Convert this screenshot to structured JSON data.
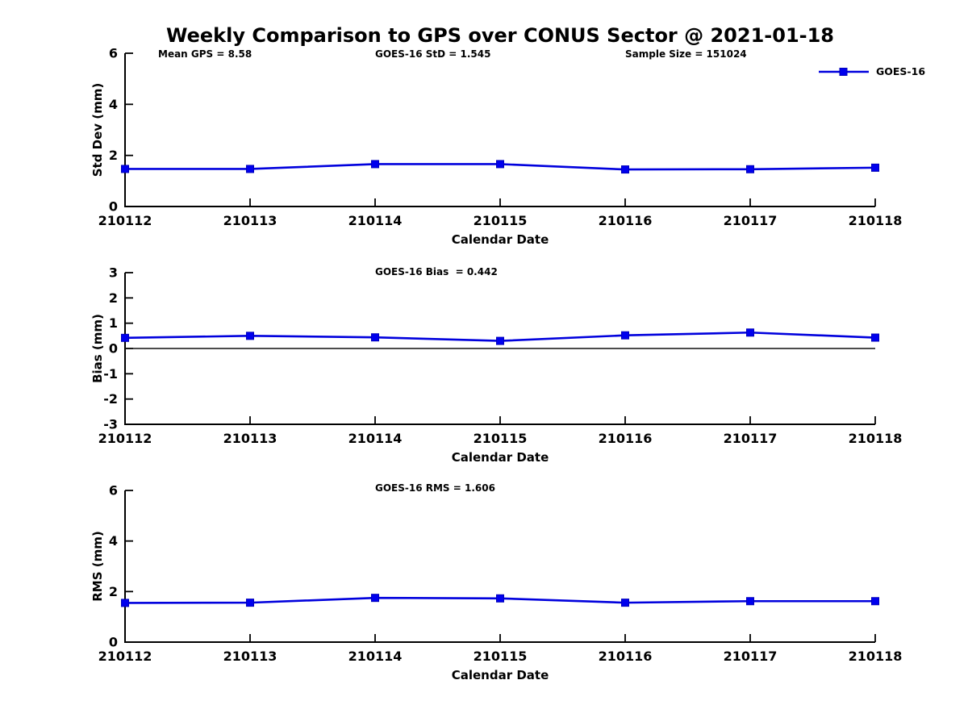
{
  "title": "Weekly Comparison to GPS over CONUS Sector @ 2021-01-18",
  "legend": {
    "label": "GOES-16"
  },
  "style": {
    "line_color": "#0000dd",
    "marker_fill": "#0000ee",
    "marker_edge": "#0000bb",
    "axis_color": "#000000",
    "marker_shape": "square"
  },
  "chart_data": [
    {
      "type": "line",
      "title": "Std Dev subplot",
      "categories": [
        "210112",
        "210113",
        "210114",
        "210115",
        "210116",
        "210117",
        "210118"
      ],
      "series": [
        {
          "name": "GOES-16",
          "values": [
            1.47,
            1.47,
            1.66,
            1.66,
            1.45,
            1.46,
            1.52
          ]
        }
      ],
      "xlabel": "Calendar Date",
      "ylabel": "Std Dev (mm)",
      "ylim": [
        0,
        6
      ],
      "yticks": [
        0,
        2,
        4,
        6
      ],
      "grid": false,
      "legend_position": "upper-right-outside",
      "annotations": [
        "Mean GPS = 8.58",
        "GOES-16 StD = 1.545",
        "Sample Size = 151024"
      ]
    },
    {
      "type": "line",
      "title": "Bias subplot",
      "categories": [
        "210112",
        "210113",
        "210114",
        "210115",
        "210116",
        "210117",
        "210118"
      ],
      "series": [
        {
          "name": "GOES-16",
          "values": [
            0.42,
            0.5,
            0.44,
            0.3,
            0.52,
            0.63,
            0.43
          ]
        }
      ],
      "xlabel": "Calendar Date",
      "ylabel": "Bias (mm)",
      "ylim": [
        -3,
        3
      ],
      "yticks": [
        -3,
        -2,
        -1,
        0,
        1,
        2,
        3
      ],
      "zero_line": true,
      "grid": false,
      "annotations": [
        "GOES-16 Bias  = 0.442"
      ]
    },
    {
      "type": "line",
      "title": "RMS subplot",
      "categories": [
        "210112",
        "210113",
        "210114",
        "210115",
        "210116",
        "210117",
        "210118"
      ],
      "series": [
        {
          "name": "GOES-16",
          "values": [
            1.55,
            1.56,
            1.75,
            1.73,
            1.56,
            1.62,
            1.62
          ]
        }
      ],
      "xlabel": "Calendar Date",
      "ylabel": "RMS (mm)",
      "ylim": [
        0,
        6
      ],
      "yticks": [
        0,
        2,
        4,
        6
      ],
      "grid": false,
      "annotations": [
        "GOES-16 RMS = 1.606"
      ]
    }
  ]
}
